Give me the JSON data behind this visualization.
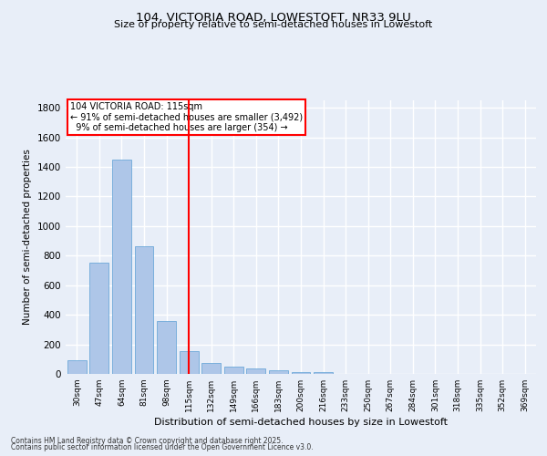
{
  "title1": "104, VICTORIA ROAD, LOWESTOFT, NR33 9LU",
  "title2": "Size of property relative to semi-detached houses in Lowestoft",
  "xlabel": "Distribution of semi-detached houses by size in Lowestoft",
  "ylabel": "Number of semi-detached properties",
  "categories": [
    "30sqm",
    "47sqm",
    "64sqm",
    "81sqm",
    "98sqm",
    "115sqm",
    "132sqm",
    "149sqm",
    "166sqm",
    "183sqm",
    "200sqm",
    "216sqm",
    "233sqm",
    "250sqm",
    "267sqm",
    "284sqm",
    "301sqm",
    "318sqm",
    "335sqm",
    "352sqm",
    "369sqm"
  ],
  "values": [
    90,
    755,
    1450,
    865,
    355,
    155,
    75,
    50,
    35,
    22,
    12,
    10,
    0,
    0,
    0,
    0,
    0,
    0,
    0,
    0,
    0
  ],
  "bar_color": "#aec6e8",
  "bar_edge_color": "#5a9fd4",
  "vline_x": 5,
  "vline_color": "red",
  "annotation_text": "104 VICTORIA ROAD: 115sqm\n← 91% of semi-detached houses are smaller (3,492)\n  9% of semi-detached houses are larger (354) →",
  "annotation_box_color": "white",
  "annotation_box_edge": "red",
  "ylim": [
    0,
    1850
  ],
  "yticks": [
    0,
    200,
    400,
    600,
    800,
    1000,
    1200,
    1400,
    1600,
    1800
  ],
  "footer1": "Contains HM Land Registry data © Crown copyright and database right 2025.",
  "footer2": "Contains public sector information licensed under the Open Government Licence v3.0.",
  "bg_color": "#e8eef8",
  "grid_color": "#ffffff"
}
